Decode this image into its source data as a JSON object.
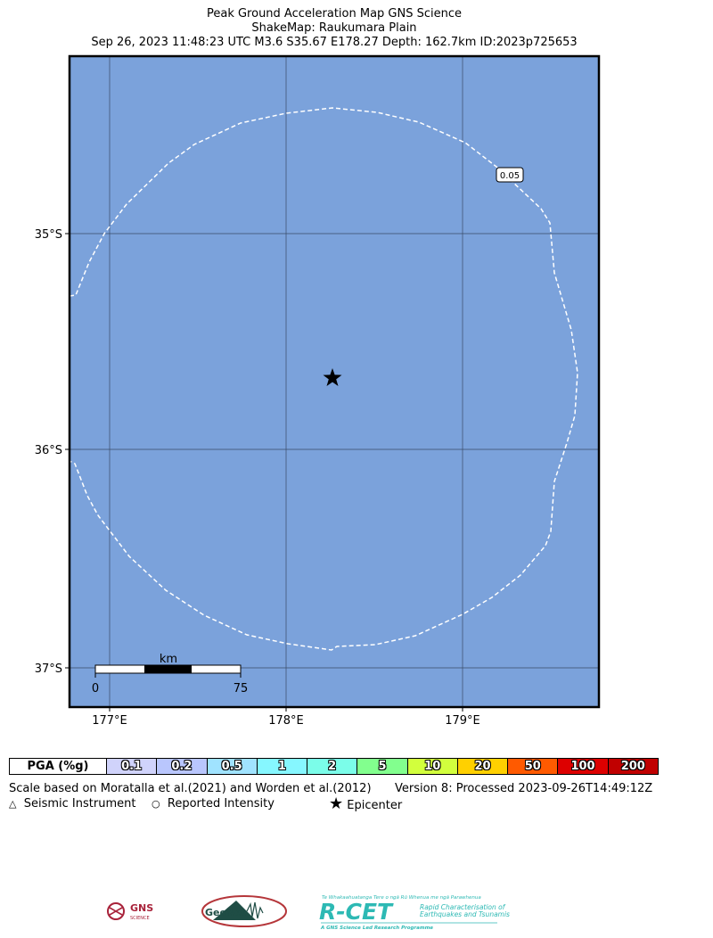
{
  "title": {
    "line1": "Peak Ground Acceleration Map GNS Science",
    "line2": "ShakeMap: Raukumara Plain",
    "line3": "Sep 26, 2023 11:48:23 UTC M3.6 S35.67 E178.27 Depth: 162.7km ID:2023p725653"
  },
  "map": {
    "ocean_color": "#7ba2db",
    "lat_labels": [
      "35°S",
      "36°S",
      "37°S"
    ],
    "lon_labels": [
      "177°E",
      "178°E",
      "179°E"
    ],
    "contour_label": "0.05",
    "scale_bar": {
      "unit": "km",
      "start": "0",
      "end": "75"
    },
    "epicenter": {
      "lat": -35.67,
      "lon": 178.27
    }
  },
  "legend": {
    "header": "PGA (%g)",
    "items": [
      {
        "label": "0.1",
        "color": "#d0d3fb"
      },
      {
        "label": "0.2",
        "color": "#b9c6fd"
      },
      {
        "label": "0.5",
        "color": "#a0e3ff"
      },
      {
        "label": "1",
        "color": "#86f7ff"
      },
      {
        "label": "2",
        "color": "#7bfde9"
      },
      {
        "label": "5",
        "color": "#82ff8e"
      },
      {
        "label": "10",
        "color": "#d2ff3d"
      },
      {
        "label": "20",
        "color": "#ffd000"
      },
      {
        "label": "50",
        "color": "#ff5a00"
      },
      {
        "label": "100",
        "color": "#dd0000"
      },
      {
        "label": "200",
        "color": "#c00000"
      }
    ]
  },
  "notes": {
    "scale": "Scale based on Moratalla et al.(2021) and Worden et al.(2012)",
    "version": "Version 8: Processed 2023-09-26T14:49:12Z",
    "seismic": "Seismic Instrument",
    "reported": "Reported Intensity",
    "epicenter": "Epicenter"
  },
  "logos": {
    "gns": "GNS",
    "gns_sub": "SCIENCE",
    "geonet": "GeoNet",
    "rcet": "R-CET",
    "rcet_line1": "Te Whakaahuatanga Tere o ngā Rū Whenua me ngā Parawhenua",
    "rcet_line2": "Rapid Characterisation of",
    "rcet_line3": "Earthquakes and Tsunamis",
    "rcet_line4": "A GNS Science Led Research Programme"
  }
}
